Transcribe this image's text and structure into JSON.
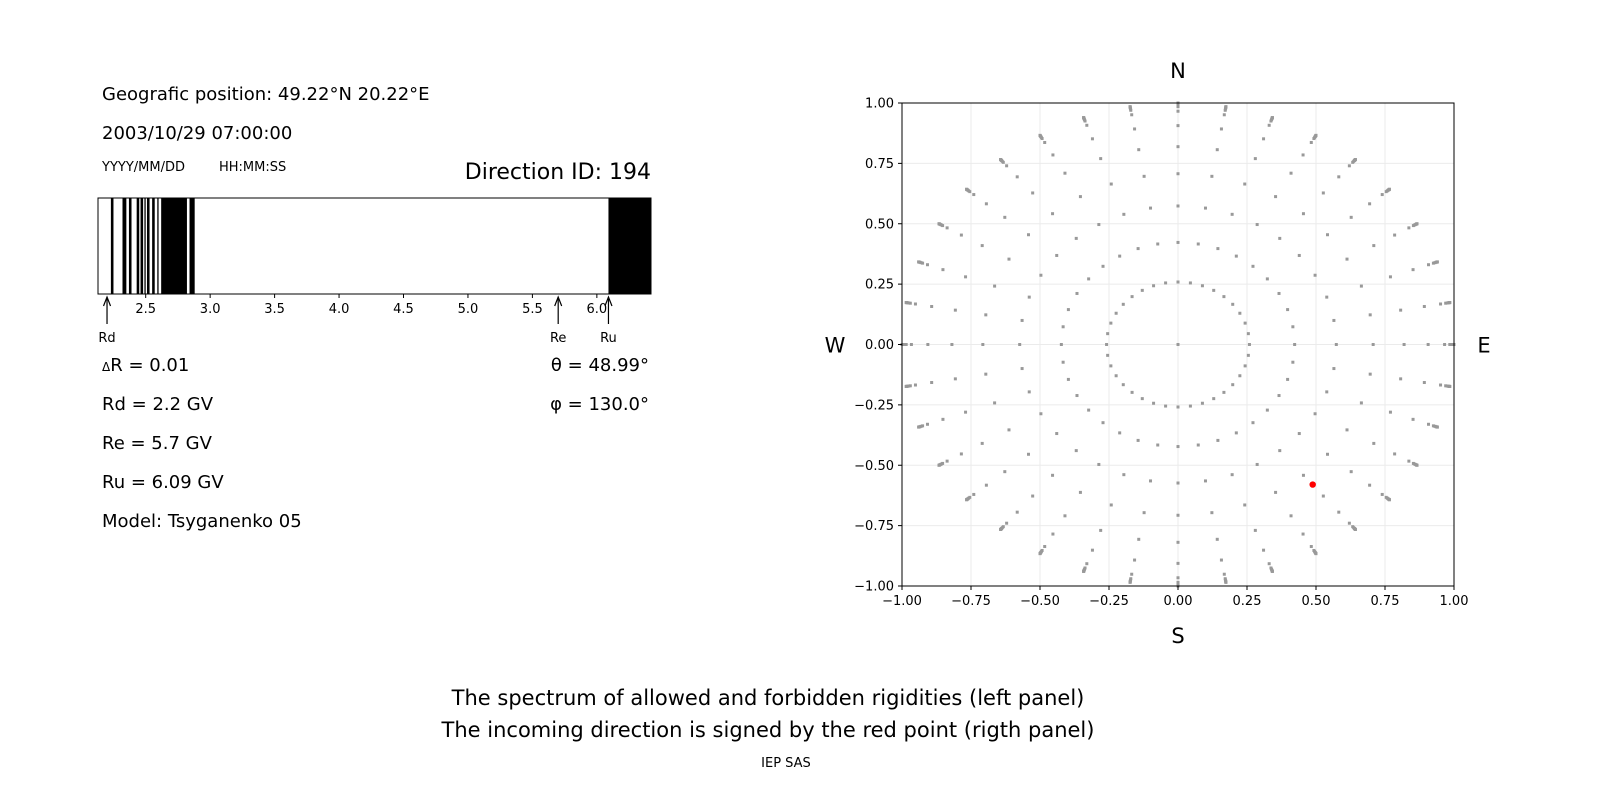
{
  "left_panel": {
    "position_text": "Geografic position: 49.22°N 20.22°E",
    "datetime_text": "2003/10/29 07:00:00",
    "date_format_label": "YYYY/MM/DD",
    "time_format_label": "HH:MM:SS",
    "direction_id_text": "Direction ID: 194",
    "delta_r_symbol": "Δ",
    "delta_r_text": "R = 0.01",
    "rd_text": "Rd = 2.2 GV",
    "re_text": "Re = 5.7 GV",
    "ru_text": "Ru = 6.09 GV",
    "model_text": "Model: Tsyganenko 05",
    "theta_text": "θ = 48.99°",
    "phi_text": "φ = 130.0°"
  },
  "footer": {
    "line1": "The spectrum of allowed and forbidden rigidities (left panel)",
    "line2": "The incoming direction is signed by the red point (rigth panel)",
    "credit": "IEP SAS"
  },
  "chart_data": [
    {
      "type": "bar",
      "title": "",
      "xlim": [
        2.13,
        6.42
      ],
      "x_ticks": [
        "2.5",
        "3.0",
        "3.5",
        "4.0",
        "4.5",
        "5.0",
        "5.5",
        "6.0"
      ],
      "forbidden_bands": [
        [
          2.23,
          2.25
        ],
        [
          2.32,
          2.35
        ],
        [
          2.37,
          2.39
        ],
        [
          2.43,
          2.45
        ],
        [
          2.46,
          2.48
        ],
        [
          2.49,
          2.5
        ],
        [
          2.51,
          2.53
        ],
        [
          2.55,
          2.57
        ],
        [
          2.59,
          2.6
        ],
        [
          2.62,
          2.82
        ],
        [
          2.84,
          2.88
        ],
        [
          6.09,
          6.42
        ]
      ],
      "markers": [
        {
          "label": "Rd",
          "value": 2.2
        },
        {
          "label": "Re",
          "value": 5.7
        },
        {
          "label": "Ru",
          "value": 6.09
        }
      ],
      "colors": {
        "forbidden": "#000000",
        "allowed": "#ffffff"
      }
    },
    {
      "type": "scatter",
      "xlim": [
        -1.0,
        1.0
      ],
      "ylim": [
        -1.0,
        1.0
      ],
      "x_ticks": [
        "−1.00",
        "−0.75",
        "−0.50",
        "−0.25",
        "0.00",
        "0.25",
        "0.50",
        "0.75",
        "1.00"
      ],
      "y_ticks": [
        "1.00",
        "0.75",
        "0.50",
        "0.25",
        "0.00",
        "−0.25",
        "−0.50",
        "−0.75",
        "−1.00"
      ],
      "grid": true,
      "compass": {
        "north": "N",
        "south": "S",
        "west": "W",
        "east": "E"
      },
      "direction_grid": {
        "zenith_angles_deg": [
          0,
          15,
          25,
          35,
          45,
          55,
          65,
          75,
          80,
          82,
          84,
          86,
          88,
          90
        ],
        "azimuth_step_deg": 10,
        "color": "#999999"
      },
      "highlight": {
        "x": 0.488,
        "y": -0.58,
        "color": "#ff0000"
      }
    }
  ]
}
